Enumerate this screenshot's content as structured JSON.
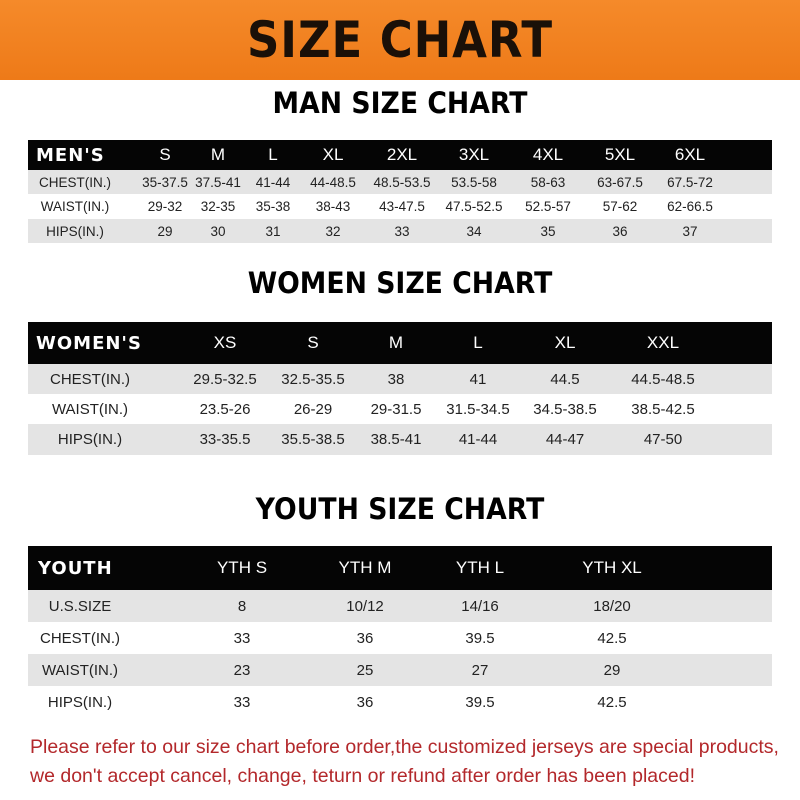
{
  "banner": {
    "title": "SIZE CHART",
    "color": "#f07d1e"
  },
  "men": {
    "title": "MAN SIZE CHART",
    "header": [
      "MEN'S",
      "S",
      "M",
      "L",
      "XL",
      "2XL",
      "3XL",
      "4XL",
      "5XL",
      "6XL"
    ],
    "rows": [
      [
        "CHEST(IN.)",
        "35-37.5",
        "37.5-41",
        "41-44",
        "44-48.5",
        "48.5-53.5",
        "53.5-58",
        "58-63",
        "63-67.5",
        "67.5-72"
      ],
      [
        "WAIST(IN.)",
        "29-32",
        "32-35",
        "35-38",
        "38-43",
        "43-47.5",
        "47.5-52.5",
        "52.5-57",
        "57-62",
        "62-66.5"
      ],
      [
        "HIPS(IN.)",
        "29",
        "30",
        "31",
        "32",
        "33",
        "34",
        "35",
        "36",
        "37"
      ]
    ]
  },
  "women": {
    "title": "WOMEN SIZE CHART",
    "header": [
      "WOMEN'S",
      "XS",
      "S",
      "M",
      "L",
      "XL",
      "XXL"
    ],
    "rows": [
      [
        "CHEST(IN.)",
        "29.5-32.5",
        "32.5-35.5",
        "38",
        "41",
        "44.5",
        "44.5-48.5"
      ],
      [
        "WAIST(IN.)",
        "23.5-26",
        "26-29",
        "29-31.5",
        "31.5-34.5",
        "34.5-38.5",
        "38.5-42.5"
      ],
      [
        "HIPS(IN.)",
        "33-35.5",
        "35.5-38.5",
        "38.5-41",
        "41-44",
        "44-47",
        "47-50"
      ]
    ]
  },
  "youth": {
    "title": "YOUTH SIZE CHART",
    "header": [
      "YOUTH",
      "YTH S",
      "YTH M",
      "YTH L",
      "YTH XL"
    ],
    "rows": [
      [
        "U.S.SIZE",
        "8",
        "10/12",
        "14/16",
        "18/20"
      ],
      [
        "CHEST(IN.)",
        "33",
        "36",
        "39.5",
        "42.5"
      ],
      [
        "WAIST(IN.)",
        "23",
        "25",
        "27",
        "29"
      ],
      [
        "HIPS(IN.)",
        "33",
        "36",
        "39.5",
        "42.5"
      ]
    ]
  },
  "note": {
    "line1": "Please refer to our size chart before order,the customized jerseys are special products,",
    "line2": "we don't accept cancel, change, teturn or refund after order has been placed!"
  }
}
